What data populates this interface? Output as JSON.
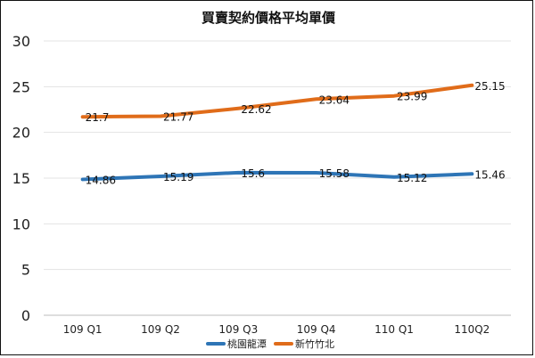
{
  "chart_data": {
    "type": "line",
    "title": "買賣契約價格平均單價",
    "categories": [
      "109 Q1",
      "109 Q2",
      "109 Q3",
      "109 Q4",
      "110 Q1",
      "110Q2"
    ],
    "ylim": [
      0,
      30
    ],
    "yticks": [
      0,
      5,
      10,
      15,
      20,
      25,
      30
    ],
    "grid": true,
    "legend_position": "bottom",
    "series": [
      {
        "name": "桃園龍潭",
        "color": "#2e75b6",
        "values": [
          14.86,
          15.19,
          15.6,
          15.58,
          15.12,
          15.46
        ],
        "labels": [
          "14.86",
          "15.19",
          "15.6",
          "15.58",
          "15.12",
          "15.46"
        ]
      },
      {
        "name": "新竹竹北",
        "color": "#e06c1a",
        "values": [
          21.7,
          21.77,
          22.62,
          23.64,
          23.99,
          25.15
        ],
        "labels": [
          "21.7",
          "21.77",
          "22.62",
          "23.64",
          "23.99",
          "25.15"
        ]
      }
    ]
  }
}
